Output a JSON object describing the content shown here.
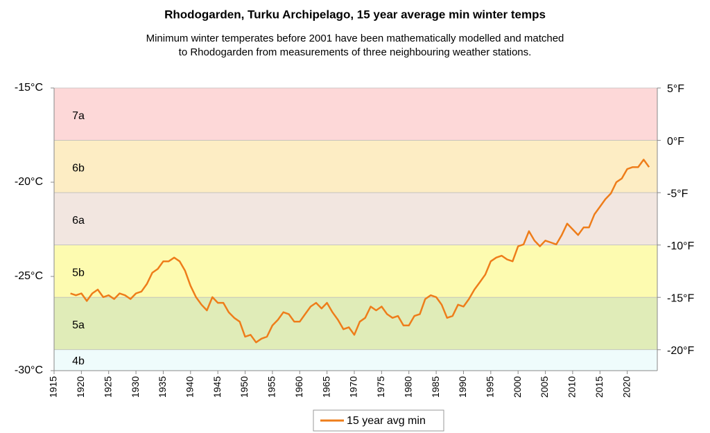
{
  "chart_data": {
    "type": "line",
    "title": "Rhodogarden, Turku Archipelago, 15 year average min winter temps",
    "subtitle": [
      "Minimum winter temperates before 2001 have been mathematically modelled and matched",
      "to Rhodogarden from measurements of three neighbouring weather stations."
    ],
    "x": [
      1918,
      1919,
      1920,
      1921,
      1922,
      1923,
      1924,
      1925,
      1926,
      1927,
      1928,
      1929,
      1930,
      1931,
      1932,
      1933,
      1934,
      1935,
      1936,
      1937,
      1938,
      1939,
      1940,
      1941,
      1942,
      1943,
      1944,
      1945,
      1946,
      1947,
      1948,
      1949,
      1950,
      1951,
      1952,
      1953,
      1954,
      1955,
      1956,
      1957,
      1958,
      1959,
      1960,
      1961,
      1962,
      1963,
      1964,
      1965,
      1966,
      1967,
      1968,
      1969,
      1970,
      1971,
      1972,
      1973,
      1974,
      1975,
      1976,
      1977,
      1978,
      1979,
      1980,
      1981,
      1982,
      1983,
      1984,
      1985,
      1986,
      1987,
      1988,
      1989,
      1990,
      1991,
      1992,
      1993,
      1994,
      1995,
      1996,
      1997,
      1998,
      1999,
      2000,
      2001,
      2002,
      2003,
      2004,
      2005,
      2006,
      2007,
      2008,
      2009,
      2010,
      2011,
      2012,
      2013,
      2014,
      2015,
      2016,
      2017,
      2018,
      2019,
      2020,
      2021,
      2022,
      2023,
      2024
    ],
    "series": [
      {
        "name": "15 year avg min",
        "color": "#ee7d1a",
        "values": [
          -25.9,
          -26.0,
          -25.9,
          -26.3,
          -25.9,
          -25.7,
          -26.1,
          -26.0,
          -26.2,
          -25.9,
          -26.0,
          -26.2,
          -25.9,
          -25.8,
          -25.4,
          -24.8,
          -24.6,
          -24.2,
          -24.2,
          -24.0,
          -24.2,
          -24.7,
          -25.5,
          -26.1,
          -26.5,
          -26.8,
          -26.1,
          -26.4,
          -26.4,
          -26.9,
          -27.2,
          -27.4,
          -28.2,
          -28.1,
          -28.5,
          -28.3,
          -28.2,
          -27.6,
          -27.3,
          -26.9,
          -27.0,
          -27.4,
          -27.4,
          -27.0,
          -26.6,
          -26.4,
          -26.7,
          -26.4,
          -26.9,
          -27.3,
          -27.8,
          -27.7,
          -28.1,
          -27.4,
          -27.2,
          -26.6,
          -26.8,
          -26.6,
          -27.0,
          -27.2,
          -27.1,
          -27.6,
          -27.6,
          -27.1,
          -27.0,
          -26.2,
          -26.0,
          -26.1,
          -26.5,
          -27.2,
          -27.1,
          -26.5,
          -26.6,
          -26.2,
          -25.7,
          -25.3,
          -24.9,
          -24.2,
          -24.0,
          -23.9,
          -24.1,
          -24.2,
          -23.4,
          -23.3,
          -22.6,
          -23.1,
          -23.4,
          -23.1,
          -23.2,
          -23.3,
          -22.8,
          -22.2,
          -22.5,
          -22.8,
          -22.4,
          -22.4,
          -21.7,
          -21.3,
          -20.9,
          -20.6,
          -20.0,
          -19.8,
          -19.3,
          -19.2,
          -19.2,
          -18.8,
          -19.2
        ]
      }
    ],
    "xlim": [
      1915,
      2025
    ],
    "xticks": [
      1915,
      1920,
      1925,
      1930,
      1935,
      1940,
      1945,
      1950,
      1955,
      1960,
      1965,
      1970,
      1975,
      1980,
      1985,
      1990,
      1995,
      2000,
      2005,
      2010,
      2015,
      2020
    ],
    "ylim": [
      -15,
      -30
    ],
    "yticks": [
      {
        "value": -15,
        "label": "-15°C"
      },
      {
        "value": -20,
        "label": "-20°C"
      },
      {
        "value": -25,
        "label": "-25°C"
      },
      {
        "value": -30,
        "label": "-30°C"
      }
    ],
    "y2lim": [
      5,
      -22
    ],
    "y2ticks": [
      {
        "value": 5,
        "label": "5°F"
      },
      {
        "value": 0,
        "label": "0°F"
      },
      {
        "value": -5,
        "label": "-5°F"
      },
      {
        "value": -10,
        "label": "-10°F"
      },
      {
        "value": -15,
        "label": "-15°F"
      },
      {
        "value": -20,
        "label": "-20°F"
      }
    ],
    "zones": [
      {
        "label": "7a",
        "from": 5,
        "to": 0,
        "color": "#fdd8d8"
      },
      {
        "label": "6b",
        "from": 0,
        "to": -5,
        "color": "#fdedc4"
      },
      {
        "label": "6a",
        "from": -5,
        "to": -10,
        "color": "#f2e6e0"
      },
      {
        "label": "5b",
        "from": -10,
        "to": -15,
        "color": "#fdfbb0"
      },
      {
        "label": "5a",
        "from": -15,
        "to": -20,
        "color": "#e0ecb8"
      },
      {
        "label": "4b",
        "from": -20,
        "to": -22,
        "color": "#effcfc"
      }
    ],
    "legend": "bottom"
  }
}
